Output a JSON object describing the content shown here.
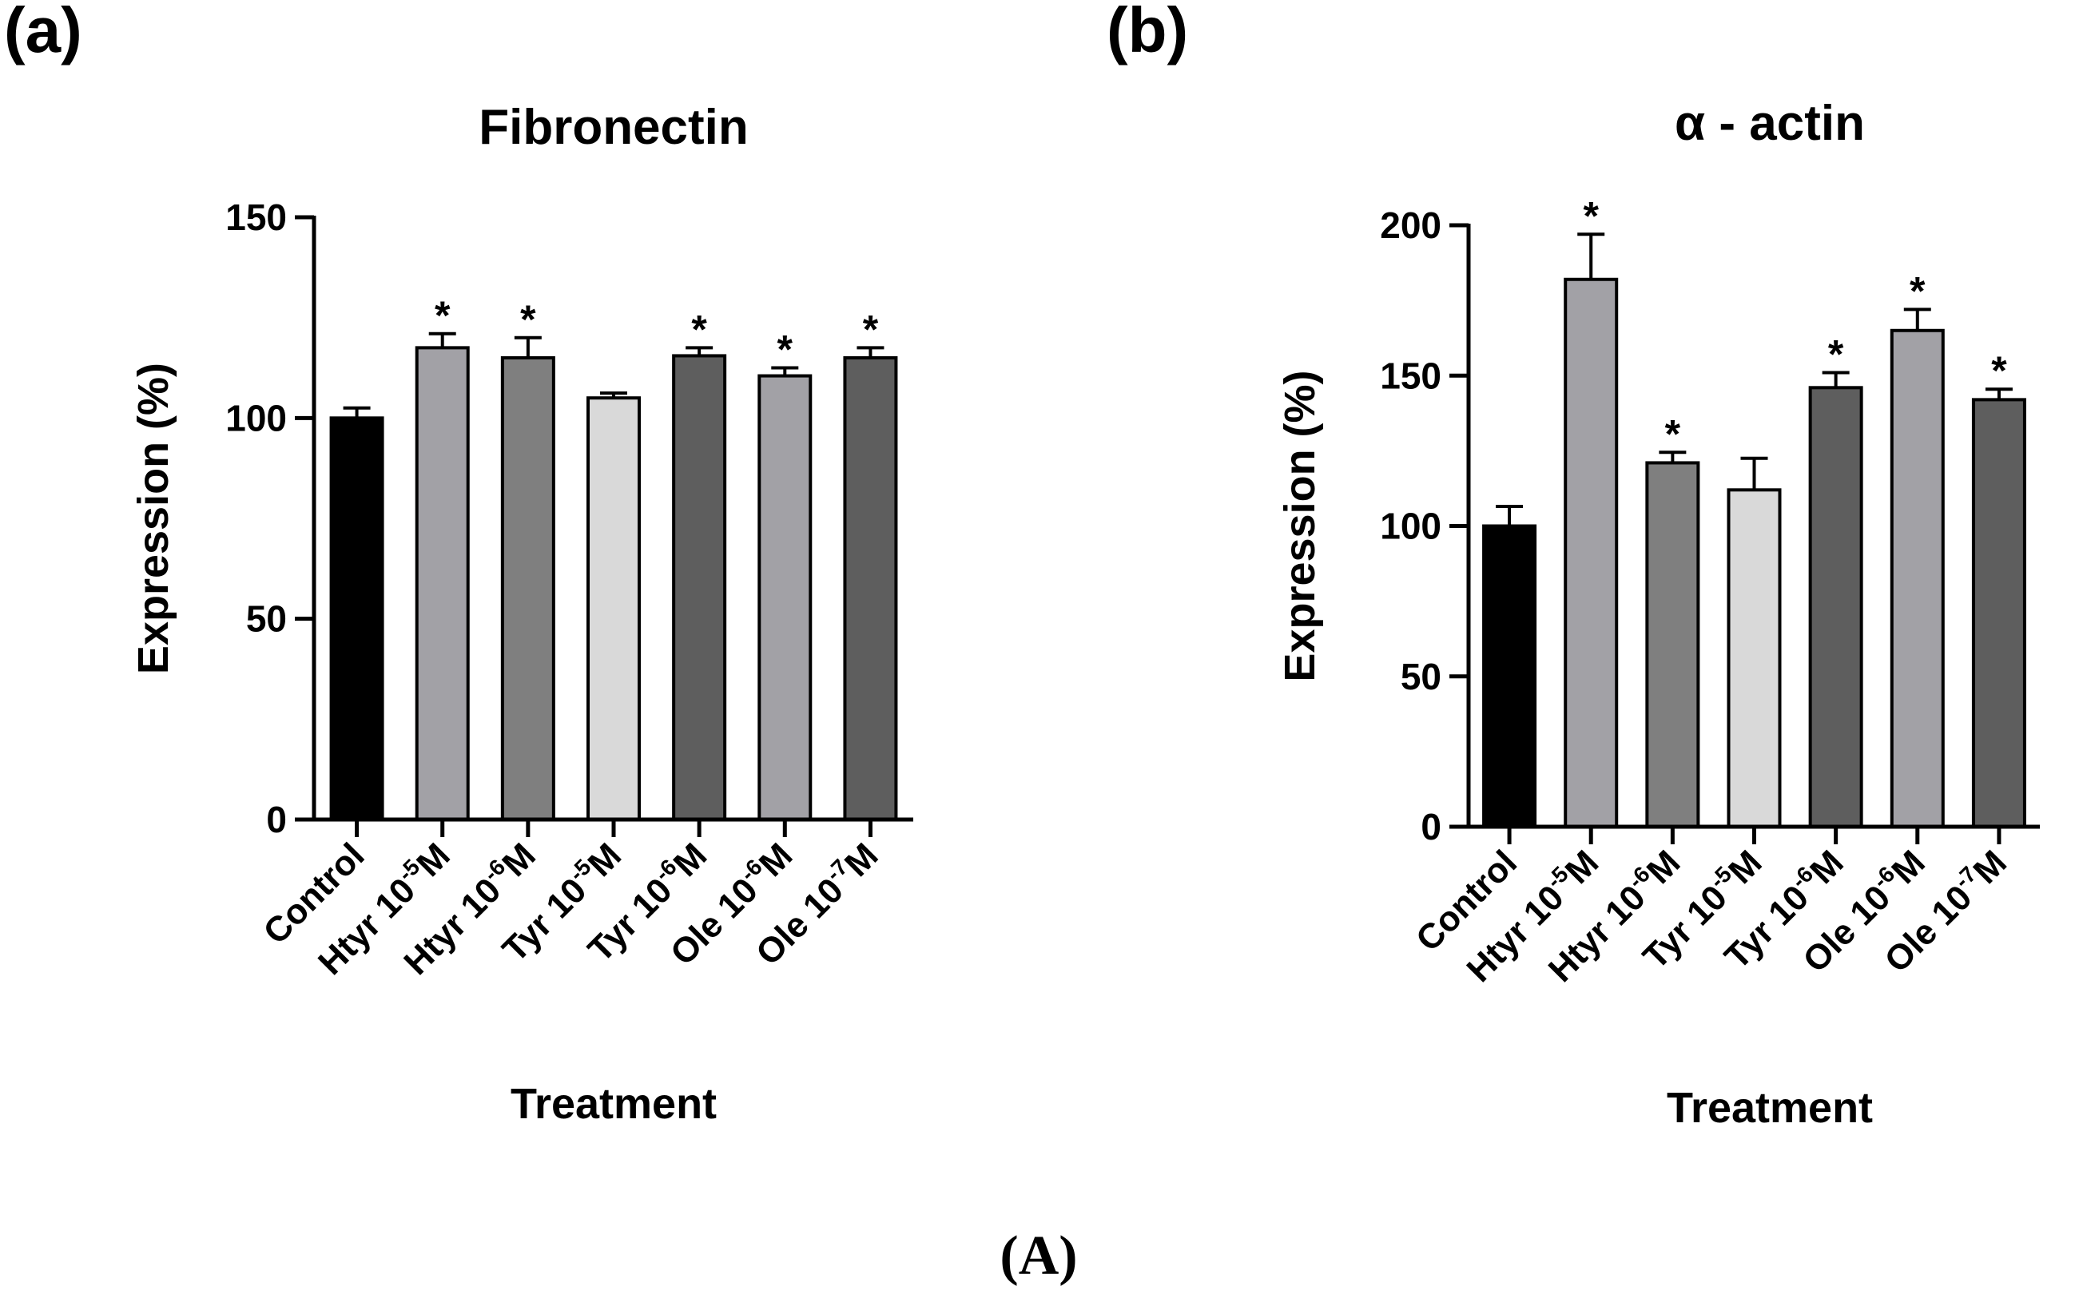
{
  "figure": {
    "caption": "(A)"
  },
  "chart_data": [
    {
      "panel": "(a)",
      "type": "bar",
      "title": "Fibronectin",
      "xlabel": "Treatment",
      "ylabel": "Expression (%)",
      "ylim": [
        0,
        150
      ],
      "yticks": [
        0,
        50,
        100,
        150
      ],
      "categories": [
        {
          "base": "Control",
          "exp": "",
          "unit": ""
        },
        {
          "base": "Htyr 10",
          "exp": "-5",
          "unit": "M"
        },
        {
          "base": "Htyr 10",
          "exp": "-6",
          "unit": "M"
        },
        {
          "base": "Tyr 10",
          "exp": "-5",
          "unit": "M"
        },
        {
          "base": "Tyr 10",
          "exp": "-6",
          "unit": "M"
        },
        {
          "base": "Ole 10",
          "exp": "-6",
          "unit": "M"
        },
        {
          "base": "Ole 10",
          "exp": "-7",
          "unit": "M"
        }
      ],
      "values": [
        100,
        117.5,
        115,
        105,
        115.5,
        110.5,
        115
      ],
      "errors": [
        2.5,
        3.5,
        5,
        1.2,
        2,
        2,
        2.5
      ],
      "significant": [
        false,
        true,
        true,
        false,
        true,
        true,
        true
      ],
      "significance_marker": "*",
      "colors": [
        "#000000",
        "#a2a1a6",
        "#7f7f7f",
        "#d9d9d9",
        "#5e5e5e",
        "#a2a1a6",
        "#5e5e5e"
      ]
    },
    {
      "panel": "(b)",
      "type": "bar",
      "title": "α - actin",
      "xlabel": "Treatment",
      "ylabel": "Expression (%)",
      "ylim": [
        0,
        200
      ],
      "yticks": [
        0,
        50,
        100,
        150,
        200
      ],
      "categories": [
        {
          "base": "Control",
          "exp": "",
          "unit": ""
        },
        {
          "base": "Htyr 10",
          "exp": "-5",
          "unit": "M"
        },
        {
          "base": "Htyr 10",
          "exp": "-6",
          "unit": "M"
        },
        {
          "base": "Tyr 10",
          "exp": "-5",
          "unit": "M"
        },
        {
          "base": "Tyr 10",
          "exp": "-6",
          "unit": "M"
        },
        {
          "base": "Ole 10",
          "exp": "-6",
          "unit": "M"
        },
        {
          "base": "Ole 10",
          "exp": "-7",
          "unit": "M"
        }
      ],
      "values": [
        100,
        182,
        121,
        112,
        146,
        165,
        142
      ],
      "errors": [
        6.5,
        15,
        3.5,
        10.5,
        5,
        7,
        3.5
      ],
      "significant": [
        false,
        true,
        true,
        false,
        true,
        true,
        true
      ],
      "significance_marker": "*",
      "colors": [
        "#000000",
        "#a2a1a6",
        "#7f7f7f",
        "#d9d9d9",
        "#5e5e5e",
        "#a2a1a6",
        "#5e5e5e"
      ]
    }
  ]
}
